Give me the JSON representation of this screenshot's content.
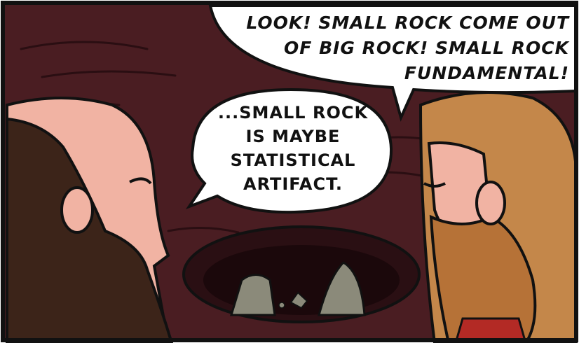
{
  "speech_bubbles": [
    {
      "lines": [
        "LOOK! SMALL ROCK COME OUT",
        "OF BIG ROCK! SMALL ROCK",
        "FUNDAMENTAL!"
      ]
    },
    {
      "lines": [
        "...SMALL ROCK",
        "IS MAYBE",
        "STATISTICAL",
        "ARTIFACT."
      ]
    }
  ]
}
